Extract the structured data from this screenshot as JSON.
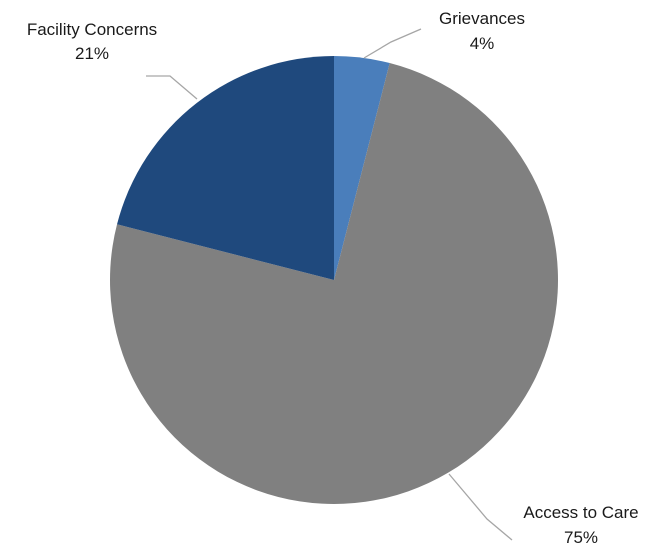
{
  "chart_data": {
    "type": "pie",
    "title": "",
    "start_angle_deg": 0,
    "direction": "clockwise",
    "slices": [
      {
        "name": "Grievances",
        "value": 4,
        "value_label": "4%",
        "color": "#4a7ebb"
      },
      {
        "name": "Access to Care",
        "value": 75,
        "value_label": "75%",
        "color": "#808080"
      },
      {
        "name": "Facility Concerns",
        "value": 21,
        "value_label": "21%",
        "color": "#1f497d"
      }
    ],
    "legend": "none",
    "data_labels": "outside-with-leader-lines"
  }
}
